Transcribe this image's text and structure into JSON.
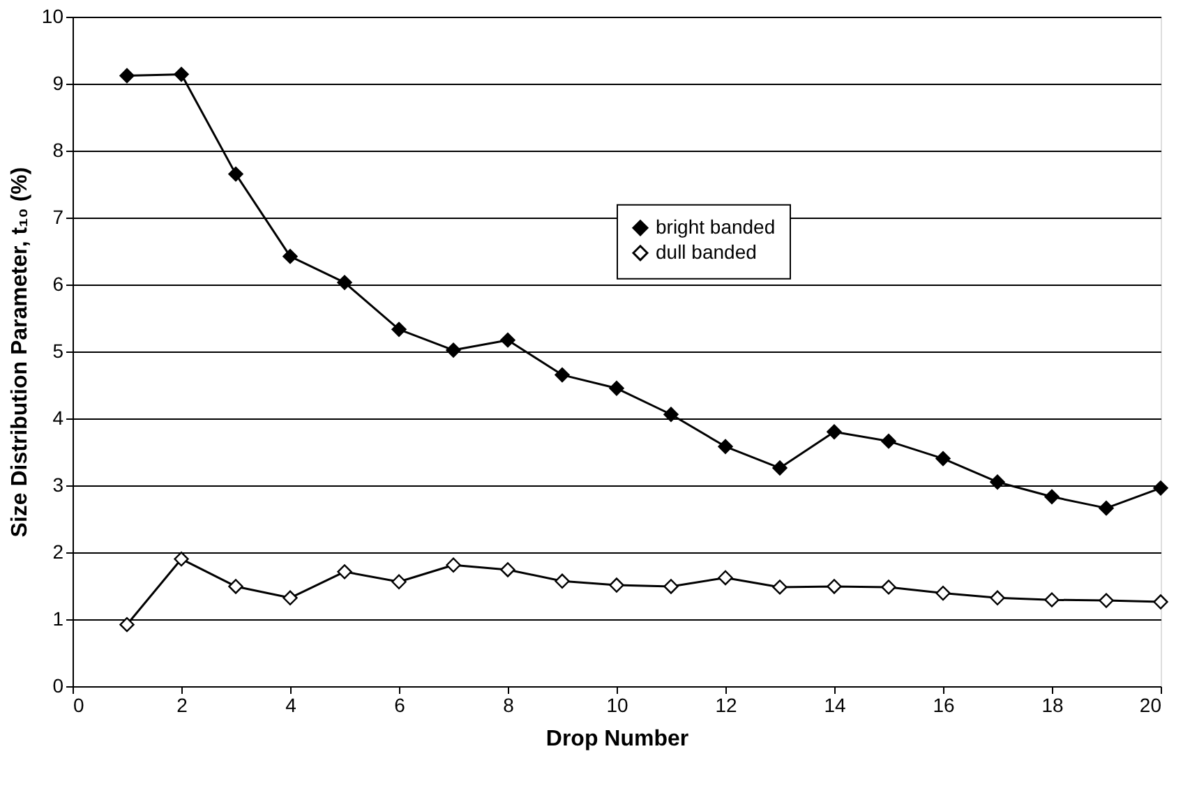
{
  "chart_data": {
    "type": "line",
    "xlabel": "Drop Number",
    "ylabel": "Size Distribution Parameter, t₁₀ (%)",
    "x": [
      1,
      2,
      3,
      4,
      5,
      6,
      7,
      8,
      9,
      10,
      11,
      12,
      13,
      14,
      15,
      16,
      17,
      18,
      19,
      20
    ],
    "series": [
      {
        "name": "bright banded",
        "color": "#000000",
        "values": [
          9.12,
          9.14,
          7.65,
          6.42,
          6.03,
          5.33,
          5.02,
          5.17,
          4.65,
          4.45,
          4.06,
          3.58,
          3.26,
          3.8,
          3.66,
          3.4,
          3.05,
          2.83,
          2.66,
          2.96
        ]
      },
      {
        "name": "dull banded",
        "color": "#000000",
        "values": [
          0.92,
          1.9,
          1.49,
          1.32,
          1.71,
          1.56,
          1.81,
          1.74,
          1.57,
          1.51,
          1.49,
          1.62,
          1.48,
          1.49,
          1.48,
          1.39,
          1.32,
          1.29,
          1.28,
          1.26
        ]
      }
    ],
    "xlim": [
      0,
      20
    ],
    "xticks": [
      0,
      2,
      4,
      6,
      8,
      10,
      12,
      14,
      16,
      18,
      20
    ],
    "ylim": [
      0,
      10
    ],
    "yticks": [
      0,
      1,
      2,
      3,
      4,
      5,
      6,
      7,
      8,
      9,
      10
    ],
    "grid": "y",
    "legend": "top",
    "marker": "diamond",
    "line_style": "solid"
  }
}
